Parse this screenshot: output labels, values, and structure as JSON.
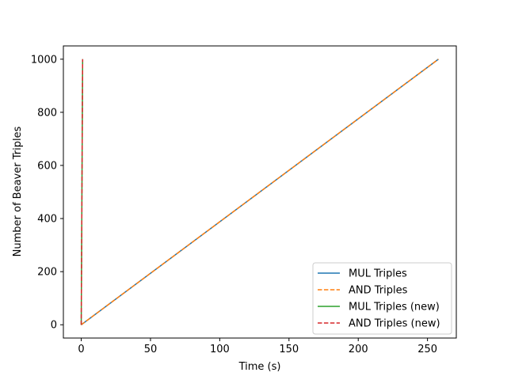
{
  "chart_data": {
    "type": "line",
    "title": "",
    "xlabel": "Time (s)",
    "ylabel": "Number of Beaver Triples",
    "xlim": [
      -12.9,
      270.8
    ],
    "ylim": [
      -50,
      1050
    ],
    "xticks": [
      0,
      50,
      100,
      150,
      200,
      250
    ],
    "yticks": [
      0,
      200,
      400,
      600,
      800,
      1000
    ],
    "grid": false,
    "legend_position": "lower-right",
    "series": [
      {
        "name": "MUL Triples",
        "color": "#1f77b4",
        "dash": "solid",
        "x": [
          0,
          257.9
        ],
        "y": [
          0,
          1000
        ]
      },
      {
        "name": "AND Triples",
        "color": "#ff7f0e",
        "dash": "dashed",
        "x": [
          0,
          257.9
        ],
        "y": [
          0,
          1000
        ]
      },
      {
        "name": "MUL Triples (new)",
        "color": "#2ca02c",
        "dash": "solid",
        "x": [
          0,
          1.0
        ],
        "y": [
          0,
          1000
        ]
      },
      {
        "name": "AND Triples (new)",
        "color": "#d62728",
        "dash": "dashed",
        "x": [
          0,
          1.0
        ],
        "y": [
          0,
          1000
        ]
      }
    ]
  }
}
